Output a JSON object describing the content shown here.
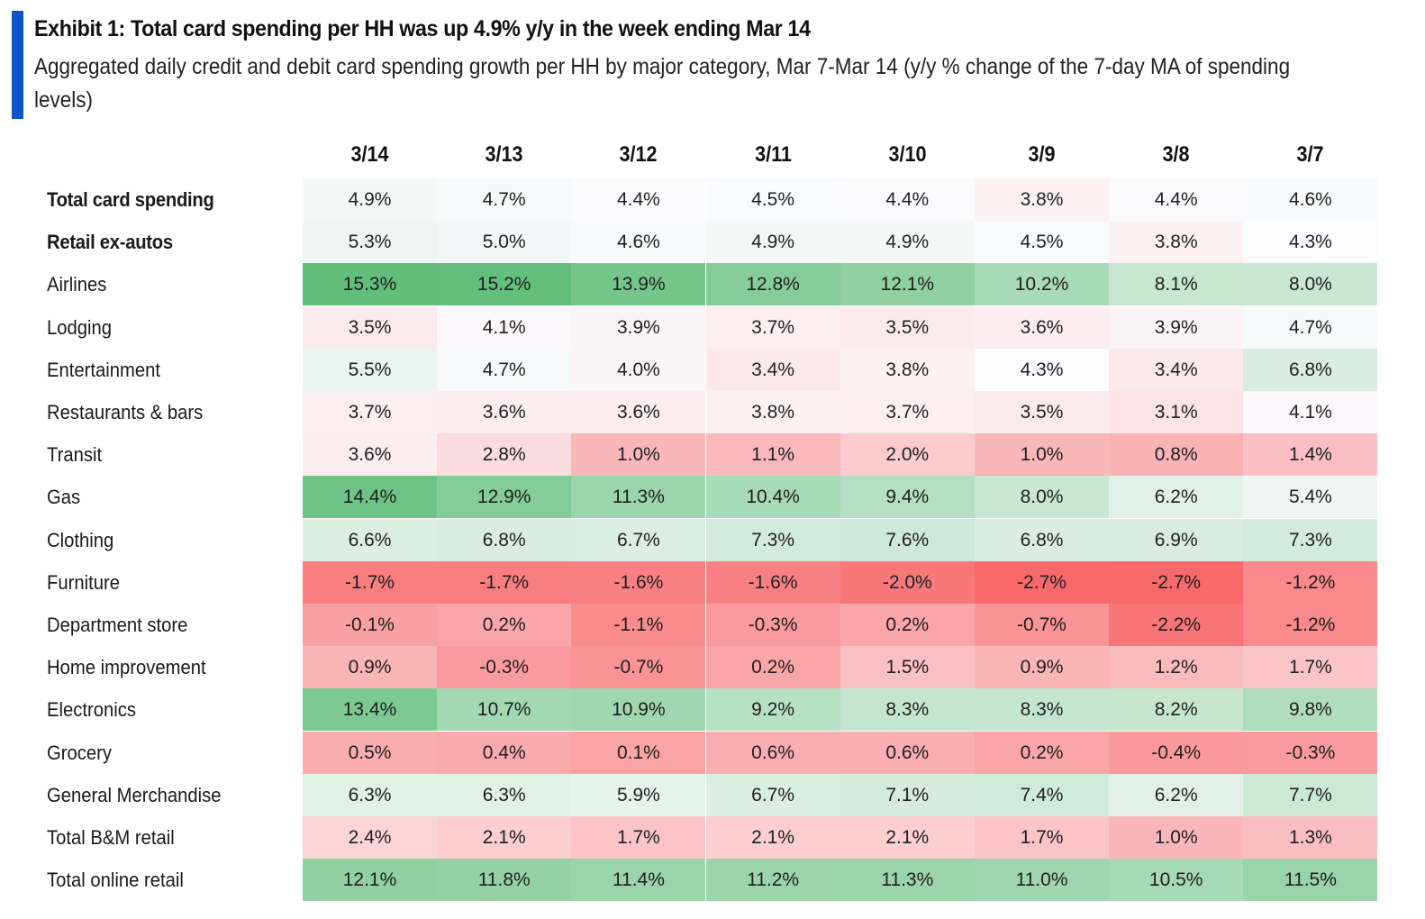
{
  "header": {
    "title": "Exhibit 1: Total card spending per HH was up 4.9% y/y in the week ending Mar 14",
    "subtitle": "Aggregated daily credit and debit card spending growth per HH by major category, Mar 7-Mar 14 (y/y % change of the 7-day MA of spending levels)"
  },
  "colors": {
    "accent": "#0b55c8",
    "scale_low": "#f8696b",
    "scale_mid": "#fcfcff",
    "scale_high": "#63be7b"
  },
  "chart_data": {
    "type": "heatmap",
    "title": "Exhibit 1: Total card spending per HH was up 4.9% y/y in the week ending Mar 14",
    "subtitle": "Aggregated daily credit and debit card spending growth per HH by major category, Mar 7-Mar 14 (y/y % change of the 7-day MA of spending levels)",
    "unit": "%",
    "columns": [
      "3/14",
      "3/13",
      "3/12",
      "3/11",
      "3/10",
      "3/9",
      "3/8",
      "3/7"
    ],
    "color_scale": {
      "min": -2.7,
      "mid": 4.3,
      "max": 15.3
    },
    "rows": [
      {
        "label": "Total card spending",
        "bold": true,
        "values": [
          4.9,
          4.7,
          4.4,
          4.5,
          4.4,
          3.8,
          4.4,
          4.6
        ]
      },
      {
        "label": "Retail ex-autos",
        "bold": true,
        "values": [
          5.3,
          5.0,
          4.6,
          4.9,
          4.9,
          4.5,
          3.8,
          4.3
        ]
      },
      {
        "label": "Airlines",
        "bold": false,
        "values": [
          15.3,
          15.2,
          13.9,
          12.8,
          12.1,
          10.2,
          8.1,
          8.0
        ]
      },
      {
        "label": "Lodging",
        "bold": false,
        "values": [
          3.5,
          4.1,
          3.9,
          3.7,
          3.5,
          3.6,
          3.9,
          4.7
        ]
      },
      {
        "label": "Entertainment",
        "bold": false,
        "values": [
          5.5,
          4.7,
          4.0,
          3.4,
          3.8,
          4.3,
          3.4,
          6.8
        ]
      },
      {
        "label": "Restaurants & bars",
        "bold": false,
        "values": [
          3.7,
          3.6,
          3.6,
          3.8,
          3.7,
          3.5,
          3.1,
          4.1
        ]
      },
      {
        "label": "Transit",
        "bold": false,
        "values": [
          3.6,
          2.8,
          1.0,
          1.1,
          2.0,
          1.0,
          0.8,
          1.4
        ]
      },
      {
        "label": "Gas",
        "bold": false,
        "values": [
          14.4,
          12.9,
          11.3,
          10.4,
          9.4,
          8.0,
          6.2,
          5.4
        ]
      },
      {
        "label": "Clothing",
        "bold": false,
        "values": [
          6.6,
          6.8,
          6.7,
          7.3,
          7.6,
          6.8,
          6.9,
          7.3
        ]
      },
      {
        "label": "Furniture",
        "bold": false,
        "values": [
          -1.7,
          -1.7,
          -1.6,
          -1.6,
          -2.0,
          -2.7,
          -2.7,
          -1.2
        ]
      },
      {
        "label": "Department store",
        "bold": false,
        "values": [
          -0.1,
          0.2,
          -1.1,
          -0.3,
          0.2,
          -0.7,
          -2.2,
          -1.2
        ]
      },
      {
        "label": "Home improvement",
        "bold": false,
        "values": [
          0.9,
          -0.3,
          -0.7,
          0.2,
          1.5,
          0.9,
          1.2,
          1.7
        ]
      },
      {
        "label": "Electronics",
        "bold": false,
        "values": [
          13.4,
          10.7,
          10.9,
          9.2,
          8.3,
          8.3,
          8.2,
          9.8
        ]
      },
      {
        "label": "Grocery",
        "bold": false,
        "values": [
          0.5,
          0.4,
          0.1,
          0.6,
          0.6,
          0.2,
          -0.4,
          -0.3
        ]
      },
      {
        "label": "General Merchandise",
        "bold": false,
        "values": [
          6.3,
          6.3,
          5.9,
          6.7,
          7.1,
          7.4,
          6.2,
          7.7
        ]
      },
      {
        "label": "Total B&M retail",
        "bold": false,
        "values": [
          2.4,
          2.1,
          1.7,
          2.1,
          2.1,
          1.7,
          1.0,
          1.3
        ]
      },
      {
        "label": "Total online retail",
        "bold": false,
        "values": [
          12.1,
          11.8,
          11.4,
          11.2,
          11.3,
          11.0,
          10.5,
          11.5
        ]
      }
    ]
  }
}
